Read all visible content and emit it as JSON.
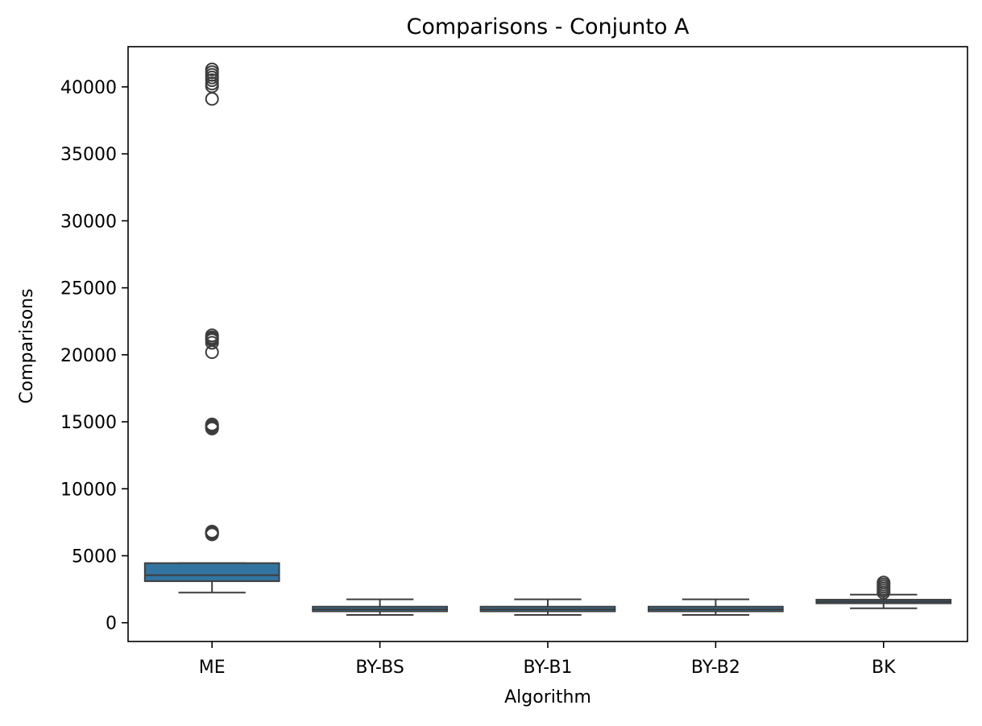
{
  "chart_data": {
    "type": "boxplot",
    "title": "Comparisons - Conjunto A",
    "xlabel": "Algorithm",
    "ylabel": "Comparisons",
    "ylim": [
      -1400,
      43000
    ],
    "yticks": [
      0,
      5000,
      10000,
      15000,
      20000,
      25000,
      30000,
      35000,
      40000
    ],
    "ytick_labels": [
      "0",
      "5000",
      "10000",
      "15000",
      "20000",
      "25000",
      "30000",
      "35000",
      "40000"
    ],
    "categories": [
      "ME",
      "BY-BS",
      "BY-B1",
      "BY-B2",
      "BK"
    ],
    "grid": false,
    "legend": "none",
    "colors": {
      "box": "#3274a1",
      "line": "#3d3d3d",
      "axis": "#000000"
    },
    "boxes": [
      {
        "name": "ME",
        "whisker_low": 2250,
        "q1": 3100,
        "median": 3550,
        "q3": 4450,
        "whisker_high": 4450,
        "outliers": [
          6600,
          6650,
          6700,
          6750,
          6800,
          14500,
          14600,
          14700,
          14800,
          20200,
          20900,
          21100,
          21200,
          21300,
          21450,
          39100,
          40050,
          40250,
          40500,
          40700,
          40900,
          41100,
          41300
        ]
      },
      {
        "name": "BY-BS",
        "whisker_low": 580,
        "q1": 850,
        "median": 1000,
        "q3": 1200,
        "whisker_high": 1750,
        "outliers": []
      },
      {
        "name": "BY-B1",
        "whisker_low": 580,
        "q1": 850,
        "median": 1000,
        "q3": 1200,
        "whisker_high": 1750,
        "outliers": []
      },
      {
        "name": "BY-B2",
        "whisker_low": 580,
        "q1": 850,
        "median": 1000,
        "q3": 1200,
        "whisker_high": 1750,
        "outliers": []
      },
      {
        "name": "BK",
        "whisker_low": 1080,
        "q1": 1450,
        "median": 1580,
        "q3": 1720,
        "whisker_high": 2100,
        "outliers": [
          2250,
          2400,
          2550,
          2700,
          2850,
          3000
        ]
      }
    ]
  }
}
